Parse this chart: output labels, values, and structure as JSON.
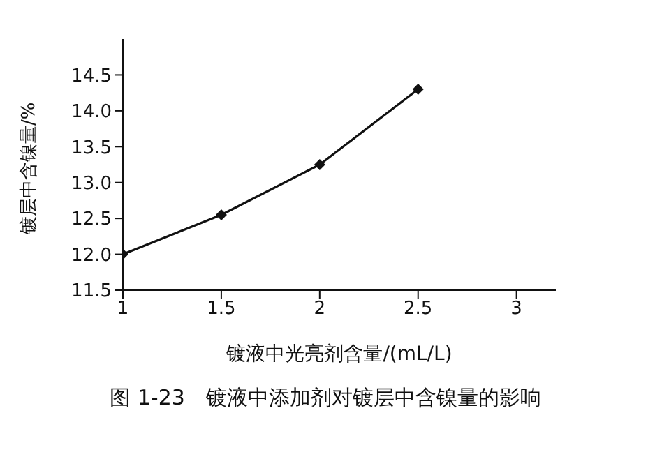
{
  "chart_data": {
    "type": "line",
    "x": [
      1,
      1.5,
      2,
      2.5
    ],
    "series": [
      {
        "color": "#111111",
        "values": [
          12.0,
          12.55,
          13.25,
          14.3
        ]
      }
    ],
    "xlabel": "镀液中光亮剂含量/(mL/L)",
    "ylabel": "镀层中含镍量/%",
    "xlim": [
      1,
      3.2
    ],
    "xticks": [
      1,
      1.5,
      2,
      2.5,
      3
    ],
    "ylim": [
      11.5,
      15
    ],
    "yticks": [
      11.5,
      {
        "value": 12,
        "label": "12.0"
      },
      12.5,
      {
        "value": 13,
        "label": "13.0"
      },
      13.5,
      {
        "value": 14,
        "label": "14.0"
      },
      14.5
    ],
    "grid": false,
    "legend": false,
    "marker": "diamond",
    "line_style": "solid",
    "annotations": [
      "图 1-23　镀液中添加剂对镀层中含镍量的影响"
    ]
  }
}
